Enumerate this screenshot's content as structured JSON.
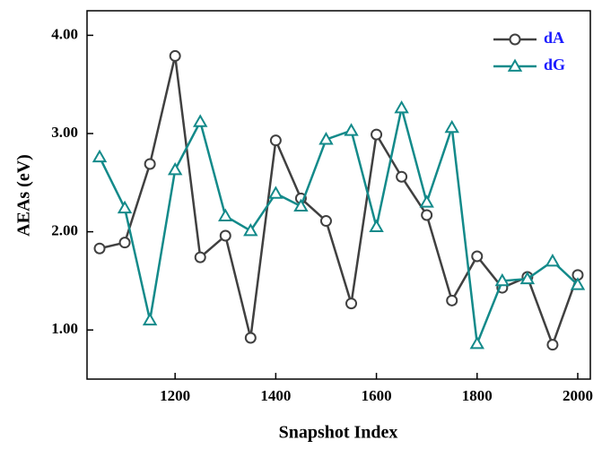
{
  "chart_data": {
    "type": "line",
    "x_label": "Snapshot Index",
    "y_label": "AEAs (eV)",
    "x": [
      1050,
      1100,
      1150,
      1200,
      1250,
      1300,
      1350,
      1400,
      1450,
      1500,
      1550,
      1600,
      1650,
      1700,
      1750,
      1800,
      1850,
      1900,
      1950,
      2000
    ],
    "series": [
      {
        "name": "dA",
        "color": "#404040",
        "marker": "circle",
        "values": [
          1.83,
          1.89,
          2.69,
          3.79,
          1.74,
          1.96,
          0.92,
          2.93,
          2.34,
          2.11,
          1.27,
          2.99,
          2.56,
          2.17,
          1.3,
          1.75,
          1.43,
          1.54,
          0.85,
          1.56
        ]
      },
      {
        "name": "dG",
        "color": "#138a8a",
        "marker": "triangle",
        "values": [
          2.76,
          2.24,
          1.1,
          2.63,
          3.12,
          2.16,
          2.01,
          2.39,
          2.26,
          2.94,
          3.03,
          2.05,
          3.26,
          2.3,
          3.06,
          0.86,
          1.5,
          1.52,
          1.7,
          1.46
        ]
      }
    ],
    "xlim": [
      1025,
      2025
    ],
    "ylim": [
      0.5,
      4.25
    ],
    "xticks": [
      1200,
      1400,
      1600,
      1800,
      2000
    ],
    "yticks": [
      {
        "value": 1,
        "label": "1.00"
      },
      {
        "value": 2,
        "label": "2.00"
      },
      {
        "value": 3,
        "label": "3.00"
      },
      {
        "value": 4,
        "label": "4.00"
      }
    ],
    "legend": "upper right"
  }
}
